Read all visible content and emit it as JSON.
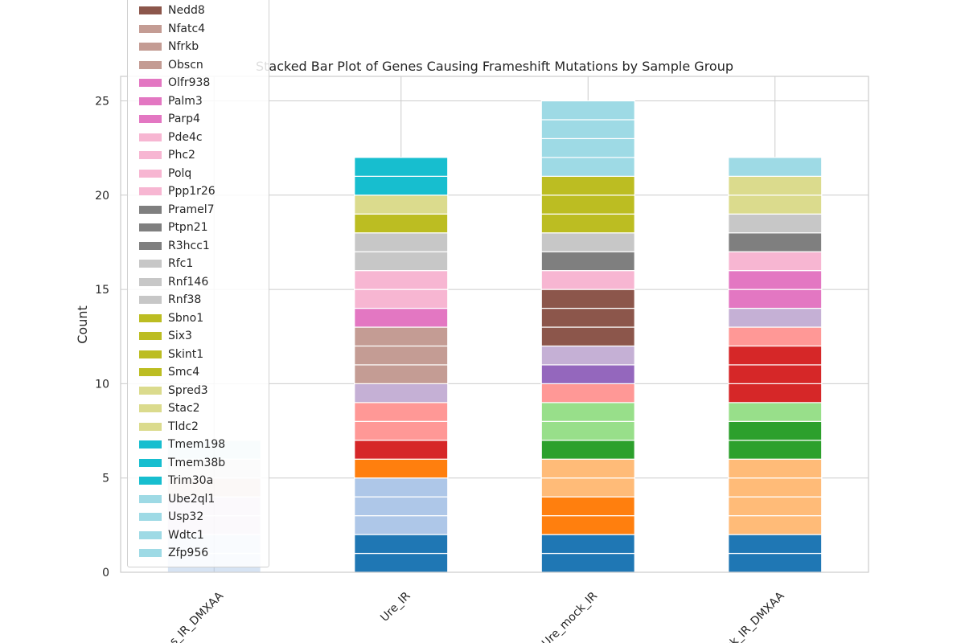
{
  "chart_data": {
    "type": "bar",
    "stacked": true,
    "title": "Stacked Bar Plot of Genes Causing Frameshift Mutations by Sample Group",
    "xlabel": "",
    "ylabel": "Count",
    "ylim": [
      0,
      26.3
    ],
    "yticks": [
      0,
      5,
      10,
      15,
      20,
      25
    ],
    "grid": true,
    "legend_position": "upper-left",
    "categories": [
      "Ure_IR_DMXAA",
      "Ure_IR",
      "Ure_mock_IR",
      "Ure_mock_IR_DMXAA"
    ],
    "category_labels_visible": [
      "s_IR_DMXAA",
      "Ure_IR",
      "Ure_mock_IR",
      "ck_IR_DMXAA"
    ],
    "legend_entries": [
      {
        "name": "Nedd8",
        "color": "#8c564b"
      },
      {
        "name": "Nfatc4",
        "color": "#c49c94"
      },
      {
        "name": "Nfrkb",
        "color": "#c49c94"
      },
      {
        "name": "Obscn",
        "color": "#c49c94"
      },
      {
        "name": "Olfr938",
        "color": "#e377c2"
      },
      {
        "name": "Palm3",
        "color": "#e377c2"
      },
      {
        "name": "Parp4",
        "color": "#e377c2"
      },
      {
        "name": "Pde4c",
        "color": "#f7b6d2"
      },
      {
        "name": "Phc2",
        "color": "#f7b6d2"
      },
      {
        "name": "Polq",
        "color": "#f7b6d2"
      },
      {
        "name": "Ppp1r26",
        "color": "#f7b6d2"
      },
      {
        "name": "Pramel7",
        "color": "#7f7f7f"
      },
      {
        "name": "Ptpn21",
        "color": "#7f7f7f"
      },
      {
        "name": "R3hcc1",
        "color": "#7f7f7f"
      },
      {
        "name": "Rfc1",
        "color": "#c7c7c7"
      },
      {
        "name": "Rnf146",
        "color": "#c7c7c7"
      },
      {
        "name": "Rnf38",
        "color": "#c7c7c7"
      },
      {
        "name": "Sbno1",
        "color": "#bcbd22"
      },
      {
        "name": "Six3",
        "color": "#bcbd22"
      },
      {
        "name": "Skint1",
        "color": "#bcbd22"
      },
      {
        "name": "Smc4",
        "color": "#bcbd22"
      },
      {
        "name": "Spred3",
        "color": "#dbdb8d"
      },
      {
        "name": "Stac2",
        "color": "#dbdb8d"
      },
      {
        "name": "Tldc2",
        "color": "#dbdb8d"
      },
      {
        "name": "Tmem198",
        "color": "#17becf"
      },
      {
        "name": "Tmem38b",
        "color": "#17becf"
      },
      {
        "name": "Trim30a",
        "color": "#17becf"
      },
      {
        "name": "Ube2ql1",
        "color": "#9edae5"
      },
      {
        "name": "Usp32",
        "color": "#9edae5"
      },
      {
        "name": "Wdtc1",
        "color": "#9edae5"
      },
      {
        "name": "Zfp956",
        "color": "#9edae5"
      }
    ],
    "stacks": [
      {
        "category": "Ure_IR_DMXAA",
        "segments": [
          "#aec7e8",
          "#aec7e8",
          "#c5b0d5",
          "#c5b0d5",
          "#c49c94",
          "#c7c7c7",
          "#9edae5"
        ]
      },
      {
        "category": "Ure_IR",
        "segments": [
          "#1f77b4",
          "#1f77b4",
          "#aec7e8",
          "#aec7e8",
          "#aec7e8",
          "#ff7f0e",
          "#d62728",
          "#ff9896",
          "#ff9896",
          "#c5b0d5",
          "#c49c94",
          "#c49c94",
          "#c49c94",
          "#e377c2",
          "#f7b6d2",
          "#f7b6d2",
          "#c7c7c7",
          "#c7c7c7",
          "#bcbd22",
          "#dbdb8d",
          "#17becf",
          "#17becf"
        ]
      },
      {
        "category": "Ure_mock_IR",
        "segments": [
          "#1f77b4",
          "#1f77b4",
          "#ff7f0e",
          "#ff7f0e",
          "#ffbb78",
          "#ffbb78",
          "#2ca02c",
          "#98df8a",
          "#98df8a",
          "#ff9896",
          "#9467bd",
          "#c5b0d5",
          "#8c564b",
          "#8c564b",
          "#8c564b",
          "#f7b6d2",
          "#7f7f7f",
          "#c7c7c7",
          "#bcbd22",
          "#bcbd22",
          "#bcbd22",
          "#9edae5",
          "#9edae5",
          "#9edae5",
          "#9edae5"
        ]
      },
      {
        "category": "Ure_mock_IR_DMXAA",
        "segments": [
          "#1f77b4",
          "#1f77b4",
          "#ffbb78",
          "#ffbb78",
          "#ffbb78",
          "#ffbb78",
          "#2ca02c",
          "#2ca02c",
          "#98df8a",
          "#d62728",
          "#d62728",
          "#d62728",
          "#ff9896",
          "#c5b0d5",
          "#e377c2",
          "#e377c2",
          "#f7b6d2",
          "#7f7f7f",
          "#c7c7c7",
          "#dbdb8d",
          "#dbdb8d",
          "#9edae5"
        ]
      }
    ]
  }
}
